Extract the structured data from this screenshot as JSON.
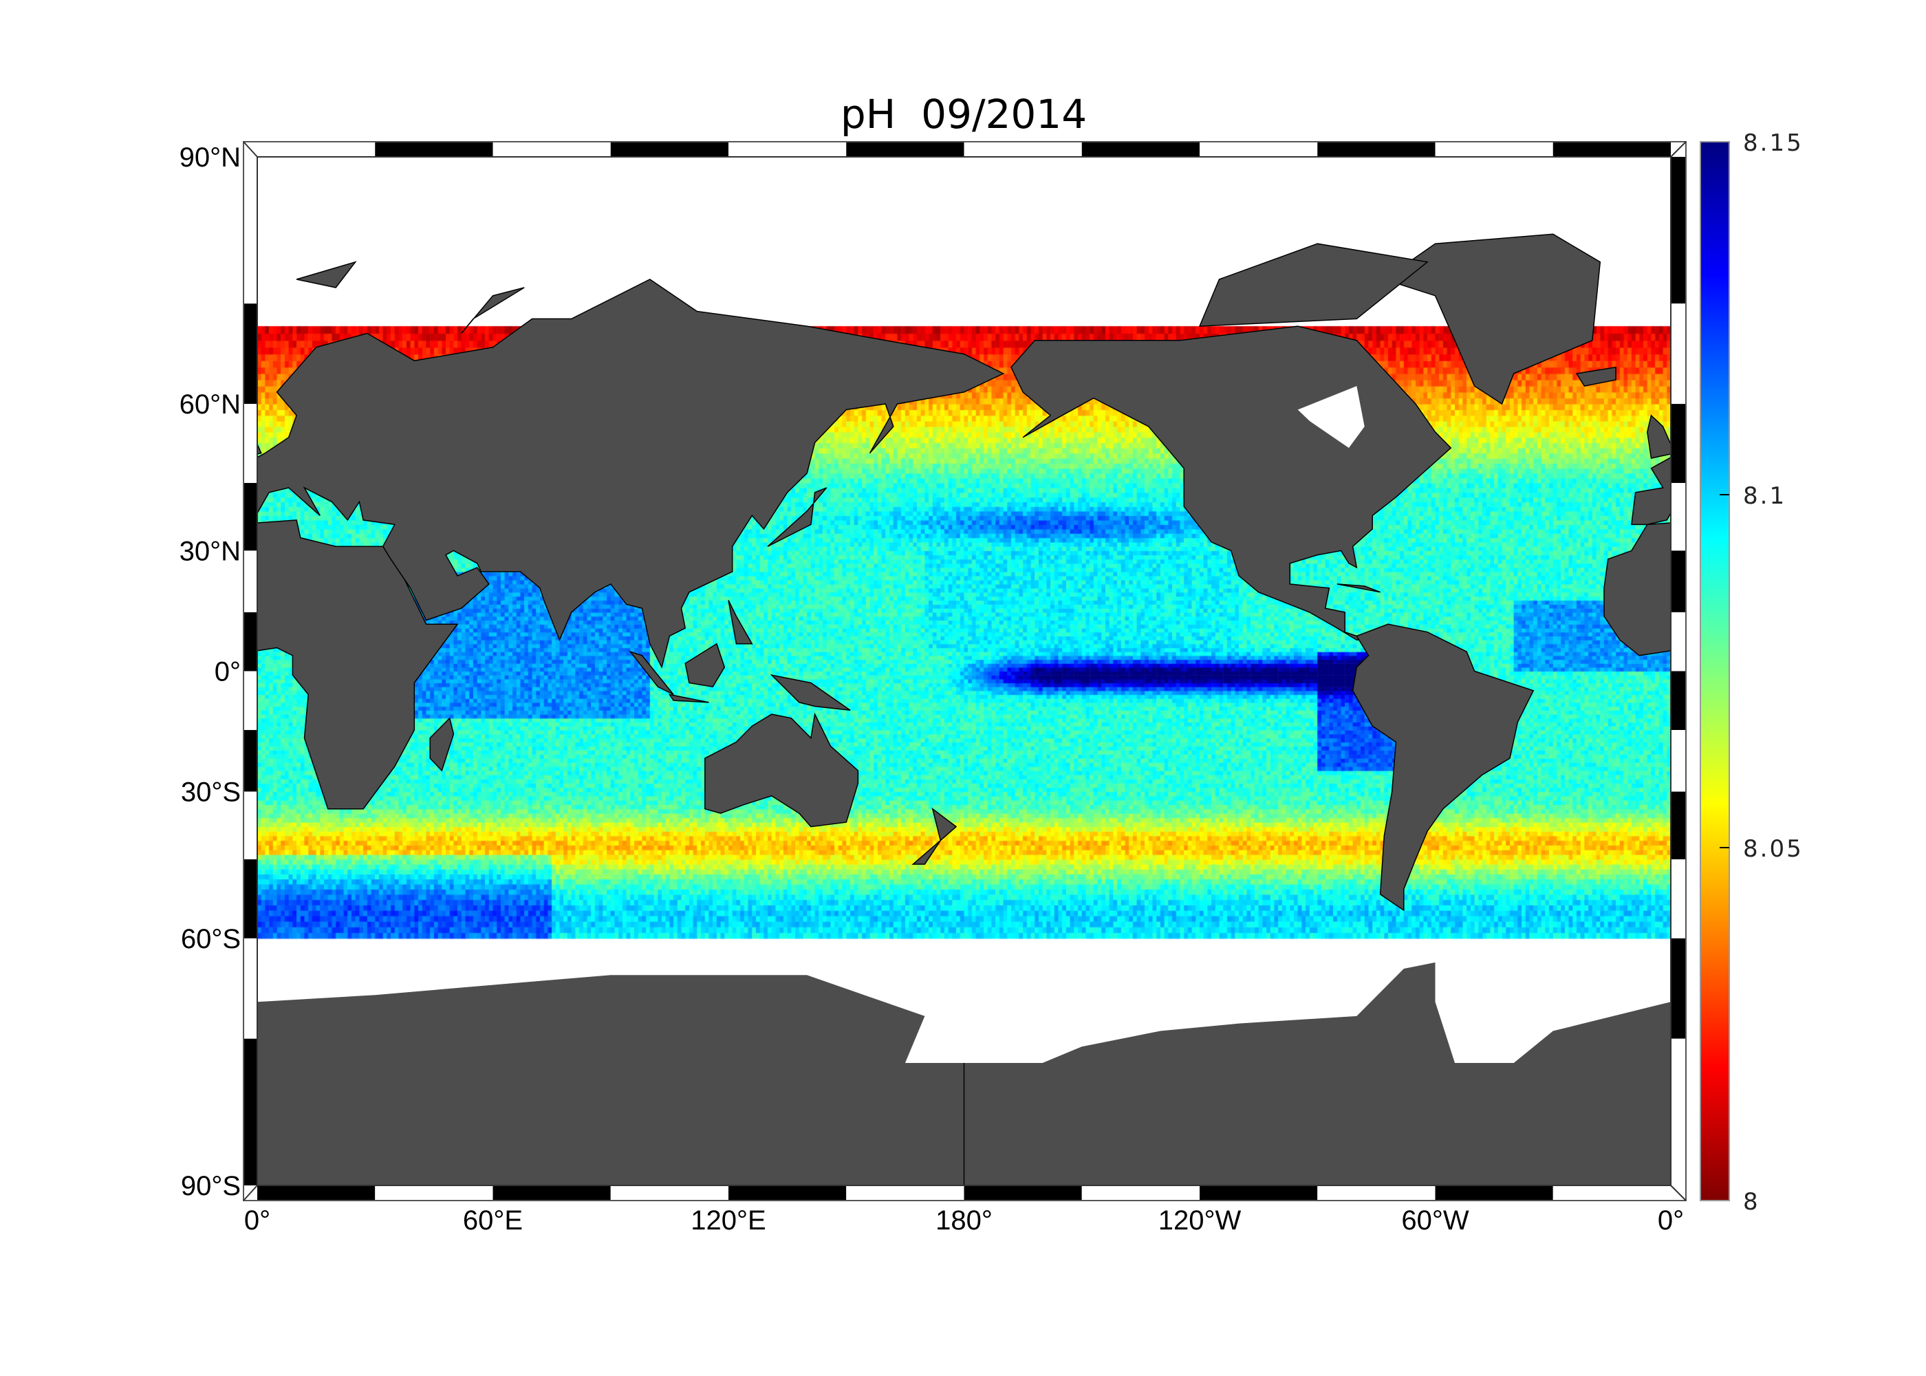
{
  "title": "pH  09/2014",
  "map": {
    "projection": "miller",
    "land_color": "#4d4d4d",
    "no_data_color": "#ffffff",
    "variable": "pH",
    "date": "09/2014",
    "lat_labels": [
      {
        "lat": 90,
        "text": "90°N"
      },
      {
        "lat": 60,
        "text": "60°N"
      },
      {
        "lat": 30,
        "text": "30°N"
      },
      {
        "lat": 0,
        "text": "0°"
      },
      {
        "lat": -30,
        "text": "30°S"
      },
      {
        "lat": -60,
        "text": "60°S"
      },
      {
        "lat": -90,
        "text": "90°S"
      }
    ],
    "lon_labels": [
      {
        "lon": 0,
        "text": "0°"
      },
      {
        "lon": 60,
        "text": "60°E"
      },
      {
        "lon": 120,
        "text": "120°E"
      },
      {
        "lon": 180,
        "text": "180°"
      },
      {
        "lon": 240,
        "text": "120°W"
      },
      {
        "lon": 300,
        "text": "60°W"
      },
      {
        "lon": 360,
        "text": "0°"
      }
    ],
    "lon_range": [
      0,
      360
    ],
    "lat_range": [
      -90,
      90
    ],
    "data_lat_range": [
      -60,
      72
    ]
  },
  "colorbar": {
    "colormap": "jet",
    "min": 8,
    "max": 8.15,
    "ticks": [
      {
        "value": 8,
        "text": "8"
      },
      {
        "value": 8.05,
        "text": "8.05"
      },
      {
        "value": 8.1,
        "text": "8.1"
      },
      {
        "value": 8.15,
        "text": "8.15"
      }
    ]
  }
}
